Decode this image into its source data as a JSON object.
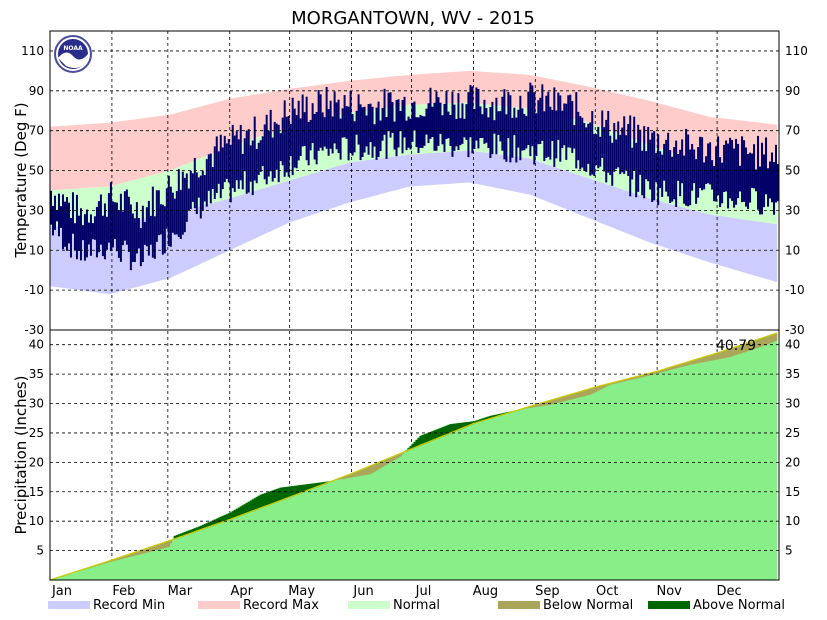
{
  "chart_data": [
    {
      "type": "bar",
      "title": "MORGANTOWN, WV - 2015",
      "ylabel": "Temperature (Deg F)",
      "ylim": [
        -30,
        120
      ],
      "yticks": [
        -10,
        10,
        30,
        50,
        70,
        90,
        110
      ],
      "grid": true,
      "months": [
        "Jan",
        "Feb",
        "Mar",
        "Apr",
        "May",
        "Jun",
        "Jul",
        "Aug",
        "Sep",
        "Oct",
        "Nov",
        "Dec"
      ],
      "record_max_profile": [
        {
          "day": 0,
          "value": 72
        },
        {
          "day": 30,
          "value": 74
        },
        {
          "day": 60,
          "value": 78
        },
        {
          "day": 90,
          "value": 86
        },
        {
          "day": 120,
          "value": 91
        },
        {
          "day": 150,
          "value": 95
        },
        {
          "day": 180,
          "value": 98
        },
        {
          "day": 210,
          "value": 100
        },
        {
          "day": 240,
          "value": 98
        },
        {
          "day": 270,
          "value": 92
        },
        {
          "day": 300,
          "value": 85
        },
        {
          "day": 330,
          "value": 77
        },
        {
          "day": 364,
          "value": 73
        }
      ],
      "normal_high_profile": [
        {
          "day": 0,
          "value": 40
        },
        {
          "day": 30,
          "value": 42
        },
        {
          "day": 60,
          "value": 50
        },
        {
          "day": 90,
          "value": 62
        },
        {
          "day": 120,
          "value": 72
        },
        {
          "day": 150,
          "value": 79
        },
        {
          "day": 180,
          "value": 83
        },
        {
          "day": 210,
          "value": 84
        },
        {
          "day": 240,
          "value": 81
        },
        {
          "day": 270,
          "value": 74
        },
        {
          "day": 300,
          "value": 63
        },
        {
          "day": 330,
          "value": 52
        },
        {
          "day": 364,
          "value": 41
        }
      ],
      "normal_low_profile": [
        {
          "day": 0,
          "value": 22
        },
        {
          "day": 30,
          "value": 23
        },
        {
          "day": 60,
          "value": 28
        },
        {
          "day": 90,
          "value": 36
        },
        {
          "day": 120,
          "value": 45
        },
        {
          "day": 150,
          "value": 54
        },
        {
          "day": 180,
          "value": 58
        },
        {
          "day": 210,
          "value": 60
        },
        {
          "day": 240,
          "value": 56
        },
        {
          "day": 270,
          "value": 46
        },
        {
          "day": 300,
          "value": 36
        },
        {
          "day": 330,
          "value": 28
        },
        {
          "day": 364,
          "value": 23
        }
      ],
      "record_min_profile": [
        {
          "day": 0,
          "value": -8
        },
        {
          "day": 30,
          "value": -12
        },
        {
          "day": 60,
          "value": -4
        },
        {
          "day": 90,
          "value": 10
        },
        {
          "day": 120,
          "value": 24
        },
        {
          "day": 150,
          "value": 34
        },
        {
          "day": 180,
          "value": 42
        },
        {
          "day": 210,
          "value": 44
        },
        {
          "day": 240,
          "value": 38
        },
        {
          "day": 270,
          "value": 26
        },
        {
          "day": 300,
          "value": 14
        },
        {
          "day": 330,
          "value": 4
        },
        {
          "day": 364,
          "value": -6
        }
      ],
      "observed_high_profile": [
        {
          "day": 0,
          "value": 40
        },
        {
          "day": 15,
          "value": 28
        },
        {
          "day": 30,
          "value": 36
        },
        {
          "day": 45,
          "value": 30
        },
        {
          "day": 60,
          "value": 42
        },
        {
          "day": 75,
          "value": 55
        },
        {
          "day": 90,
          "value": 64
        },
        {
          "day": 105,
          "value": 70
        },
        {
          "day": 120,
          "value": 80
        },
        {
          "day": 140,
          "value": 84
        },
        {
          "day": 160,
          "value": 82
        },
        {
          "day": 180,
          "value": 84
        },
        {
          "day": 200,
          "value": 85
        },
        {
          "day": 220,
          "value": 84
        },
        {
          "day": 240,
          "value": 86
        },
        {
          "day": 260,
          "value": 82
        },
        {
          "day": 280,
          "value": 72
        },
        {
          "day": 300,
          "value": 66
        },
        {
          "day": 320,
          "value": 62
        },
        {
          "day": 340,
          "value": 60
        },
        {
          "day": 364,
          "value": 58
        }
      ],
      "observed_low_profile": [
        {
          "day": 0,
          "value": 22
        },
        {
          "day": 15,
          "value": 8
        },
        {
          "day": 30,
          "value": 12
        },
        {
          "day": 45,
          "value": 4
        },
        {
          "day": 60,
          "value": 18
        },
        {
          "day": 75,
          "value": 32
        },
        {
          "day": 90,
          "value": 40
        },
        {
          "day": 105,
          "value": 46
        },
        {
          "day": 120,
          "value": 54
        },
        {
          "day": 140,
          "value": 60
        },
        {
          "day": 160,
          "value": 62
        },
        {
          "day": 180,
          "value": 64
        },
        {
          "day": 200,
          "value": 63
        },
        {
          "day": 220,
          "value": 62
        },
        {
          "day": 240,
          "value": 60
        },
        {
          "day": 260,
          "value": 58
        },
        {
          "day": 280,
          "value": 48
        },
        {
          "day": 300,
          "value": 40
        },
        {
          "day": 320,
          "value": 38
        },
        {
          "day": 340,
          "value": 36
        },
        {
          "day": 364,
          "value": 34
        }
      ]
    },
    {
      "type": "area",
      "ylabel": "Precipitation (Inches)",
      "ylim": [
        0,
        42.5
      ],
      "yticks": [
        5,
        10,
        15,
        20,
        25,
        30,
        35,
        40
      ],
      "grid": true,
      "annotation": "40.79",
      "months": [
        "Jan",
        "Feb",
        "Mar",
        "Apr",
        "May",
        "Jun",
        "Jul",
        "Aug",
        "Sep",
        "Oct",
        "Nov",
        "Dec"
      ],
      "normal_cumulative": [
        {
          "day": 0,
          "value": 0
        },
        {
          "day": 31,
          "value": 3.4
        },
        {
          "day": 59,
          "value": 6.6
        },
        {
          "day": 90,
          "value": 10.3
        },
        {
          "day": 120,
          "value": 14.1
        },
        {
          "day": 151,
          "value": 18.1
        },
        {
          "day": 181,
          "value": 22.3
        },
        {
          "day": 212,
          "value": 26.6
        },
        {
          "day": 243,
          "value": 29.8
        },
        {
          "day": 273,
          "value": 32.8
        },
        {
          "day": 304,
          "value": 35.5
        },
        {
          "day": 334,
          "value": 38.6
        },
        {
          "day": 364,
          "value": 42.0
        }
      ],
      "observed_cumulative": [
        {
          "day": 0,
          "value": 0
        },
        {
          "day": 5,
          "value": 0.6
        },
        {
          "day": 31,
          "value": 3.2
        },
        {
          "day": 59,
          "value": 5.6
        },
        {
          "day": 62,
          "value": 7.5
        },
        {
          "day": 75,
          "value": 9.2
        },
        {
          "day": 90,
          "value": 11.5
        },
        {
          "day": 105,
          "value": 14.5
        },
        {
          "day": 115,
          "value": 15.7
        },
        {
          "day": 140,
          "value": 16.8
        },
        {
          "day": 160,
          "value": 18.0
        },
        {
          "day": 175,
          "value": 21.0
        },
        {
          "day": 185,
          "value": 24.5
        },
        {
          "day": 200,
          "value": 26.5
        },
        {
          "day": 212,
          "value": 27.0
        },
        {
          "day": 220,
          "value": 27.9
        },
        {
          "day": 235,
          "value": 29.0
        },
        {
          "day": 250,
          "value": 29.8
        },
        {
          "day": 270,
          "value": 31.5
        },
        {
          "day": 280,
          "value": 33.2
        },
        {
          "day": 300,
          "value": 34.8
        },
        {
          "day": 320,
          "value": 36.6
        },
        {
          "day": 340,
          "value": 37.9
        },
        {
          "day": 355,
          "value": 39.6
        },
        {
          "day": 364,
          "value": 40.79
        }
      ]
    }
  ],
  "legend": [
    {
      "label": "Record Min",
      "color": "#ccccff"
    },
    {
      "label": "Record Max",
      "color": "#ffcccc"
    },
    {
      "label": "Normal",
      "color": "#ccffcc"
    },
    {
      "label": "Below Normal",
      "color": "#a9a659"
    },
    {
      "label": "Above Normal",
      "color": "#006600"
    }
  ],
  "colors": {
    "record_max": "#ffcccc",
    "normal": "#ccffcc",
    "record_min": "#ccccff",
    "observed": "#000066",
    "precip_fill": "#88ee88",
    "below_normal": "#a9a659",
    "above_normal": "#006600",
    "normal_line": "#cccc00"
  },
  "logo": {
    "name": "noaa-logo-icon",
    "text": "NOAA"
  }
}
